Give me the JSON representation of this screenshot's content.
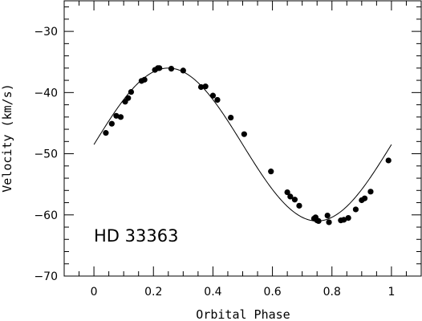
{
  "chart_data": {
    "type": "scatter",
    "title": "",
    "xlabel": "Orbital Phase",
    "ylabel": "Velocity (km/s)",
    "xlim": [
      -0.1,
      1.1
    ],
    "ylim": [
      -70,
      -25
    ],
    "x_ticks": [
      0,
      0.2,
      0.4,
      0.6,
      0.8,
      1
    ],
    "x_tick_labels": [
      "0",
      "0.2",
      "0.4",
      "0.6",
      "0.8",
      "1"
    ],
    "y_ticks": [
      -70,
      -60,
      -50,
      -40,
      -30
    ],
    "y_tick_labels": [
      "−70",
      "−60",
      "−50",
      "−40",
      "−30"
    ],
    "annotation": "HD 33363",
    "fit": {
      "gamma": -48.5,
      "K": 12.5,
      "phase_of_max": 0.25
    },
    "series": [
      {
        "points": [
          [
            0.04,
            -46.6
          ],
          [
            0.06,
            -45.1
          ],
          [
            0.075,
            -43.8
          ],
          [
            0.09,
            -44.0
          ],
          [
            0.105,
            -41.5
          ],
          [
            0.115,
            -40.9
          ],
          [
            0.125,
            -39.9
          ],
          [
            0.16,
            -38.1
          ],
          [
            0.17,
            -37.9
          ],
          [
            0.205,
            -36.3
          ],
          [
            0.215,
            -36.0
          ],
          [
            0.22,
            -36.0
          ],
          [
            0.26,
            -36.1
          ],
          [
            0.3,
            -36.4
          ],
          [
            0.36,
            -39.1
          ],
          [
            0.375,
            -39.0
          ],
          [
            0.4,
            -40.5
          ],
          [
            0.415,
            -41.2
          ],
          [
            0.46,
            -44.1
          ],
          [
            0.505,
            -46.8
          ],
          [
            0.595,
            -52.9
          ],
          [
            0.65,
            -56.3
          ],
          [
            0.66,
            -57.0
          ],
          [
            0.675,
            -57.5
          ],
          [
            0.69,
            -58.5
          ],
          [
            0.74,
            -60.6
          ],
          [
            0.745,
            -60.4
          ],
          [
            0.75,
            -60.9
          ],
          [
            0.755,
            -61.0
          ],
          [
            0.785,
            -60.1
          ],
          [
            0.79,
            -61.2
          ],
          [
            0.83,
            -60.9
          ],
          [
            0.84,
            -60.8
          ],
          [
            0.855,
            -60.5
          ],
          [
            0.88,
            -59.1
          ],
          [
            0.9,
            -57.6
          ],
          [
            0.91,
            -57.3
          ],
          [
            0.93,
            -56.2
          ],
          [
            0.99,
            -51.1
          ]
        ]
      }
    ]
  }
}
